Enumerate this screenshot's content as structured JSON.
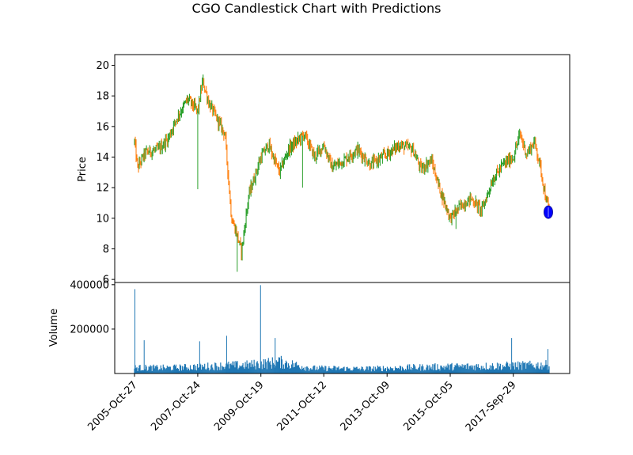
{
  "chart_data": [
    {
      "type": "candlestick",
      "title": "CGO Candlestick Chart with Predictions",
      "xlabel": "",
      "ylabel": "Price",
      "ylim": [
        5.8,
        20.7
      ],
      "y_ticks": [
        6,
        8,
        10,
        12,
        14,
        16,
        18,
        20
      ],
      "x_ticks": [
        "2005-Oct-27",
        "2007-Oct-24",
        "2009-Oct-19",
        "2011-Oct-12",
        "2013-Oct-09",
        "2015-Oct-05",
        "2017-Sep-29"
      ],
      "up_color": "#2ca02c",
      "down_color": "#ff7f0e",
      "prediction_color": "#0000ff",
      "trend": [
        {
          "date": "2005-Oct-27",
          "value": 15.0
        },
        {
          "date": "2005-Dec-01",
          "value": 13.3
        },
        {
          "date": "2006-Mar-01",
          "value": 14.3
        },
        {
          "date": "2006-Aug-01",
          "value": 14.5
        },
        {
          "date": "2006-Nov-15",
          "value": 15.2
        },
        {
          "date": "2007-Mar-01",
          "value": 16.6
        },
        {
          "date": "2007-Jul-01",
          "value": 17.8
        },
        {
          "date": "2007-Oct-24",
          "value": 17.0
        },
        {
          "date": "2007-Dec-20",
          "value": 19.0
        },
        {
          "date": "2008-Mar-01",
          "value": 17.5
        },
        {
          "date": "2008-Jun-01",
          "value": 16.5
        },
        {
          "date": "2008-Sep-01",
          "value": 15.5
        },
        {
          "date": "2008-Nov-15",
          "value": 10.0
        },
        {
          "date": "2009-Jan-15",
          "value": 9.0
        },
        {
          "date": "2009-Mar-10",
          "value": 7.8
        },
        {
          "date": "2009-Jun-01",
          "value": 11.5
        },
        {
          "date": "2009-Oct-19",
          "value": 14.0
        },
        {
          "date": "2010-Jan-15",
          "value": 14.8
        },
        {
          "date": "2010-May-20",
          "value": 13.0
        },
        {
          "date": "2010-Sep-01",
          "value": 14.5
        },
        {
          "date": "2011-Mar-01",
          "value": 15.5
        },
        {
          "date": "2011-Jul-01",
          "value": 14.0
        },
        {
          "date": "2011-Oct-12",
          "value": 14.8
        },
        {
          "date": "2012-Jan-15",
          "value": 13.3
        },
        {
          "date": "2012-Jun-01",
          "value": 13.8
        },
        {
          "date": "2012-Nov-01",
          "value": 14.5
        },
        {
          "date": "2013-Apr-01",
          "value": 13.5
        },
        {
          "date": "2013-Oct-09",
          "value": 14.2
        },
        {
          "date": "2014-Mar-01",
          "value": 14.8
        },
        {
          "date": "2014-Aug-01",
          "value": 14.5
        },
        {
          "date": "2014-Nov-01",
          "value": 13.2
        },
        {
          "date": "2015-Mar-01",
          "value": 13.8
        },
        {
          "date": "2015-Jun-01",
          "value": 12.0
        },
        {
          "date": "2015-Oct-05",
          "value": 10.0
        },
        {
          "date": "2016-Feb-01",
          "value": 10.8
        },
        {
          "date": "2016-Jun-01",
          "value": 11.3
        },
        {
          "date": "2016-Oct-01",
          "value": 10.5
        },
        {
          "date": "2017-Feb-01",
          "value": 12.5
        },
        {
          "date": "2017-Jun-01",
          "value": 13.5
        },
        {
          "date": "2017-Sep-29",
          "value": 14.0
        },
        {
          "date": "2017-Dec-15",
          "value": 15.5
        },
        {
          "date": "2018-Mar-01",
          "value": 14.2
        },
        {
          "date": "2018-Jun-01",
          "value": 15.0
        },
        {
          "date": "2018-Aug-01",
          "value": 13.5
        },
        {
          "date": "2018-Oct-01",
          "value": 11.5
        },
        {
          "date": "2018-Nov-15",
          "value": 10.5
        }
      ],
      "spikes": [
        {
          "date": "2007-Oct-24",
          "low": 11.9
        },
        {
          "date": "2009-Jan-20",
          "low": 6.5
        },
        {
          "date": "2011-Feb-10",
          "low": 12.0
        },
        {
          "date": "2015-Dec-10",
          "low": 9.3
        }
      ],
      "prediction": {
        "date": "2018-Nov-15",
        "value": 10.4
      }
    },
    {
      "type": "bar",
      "ylabel": "Volume",
      "ylim": [
        0,
        410000
      ],
      "y_ticks": [
        200000,
        400000
      ],
      "color": "#1f77b4",
      "volume_profile": [
        {
          "date": "2005-Oct-27",
          "value": 30000
        },
        {
          "date": "2007-Jan-01",
          "value": 30000
        },
        {
          "date": "2008-Jul-01",
          "value": 40000
        },
        {
          "date": "2009-Jun-01",
          "value": 45000
        },
        {
          "date": "2010-Jun-01",
          "value": 60000
        },
        {
          "date": "2011-Jun-01",
          "value": 28000
        },
        {
          "date": "2013-Jan-01",
          "value": 25000
        },
        {
          "date": "2015-Jun-01",
          "value": 35000
        },
        {
          "date": "2017-Jun-01",
          "value": 40000
        },
        {
          "date": "2018-Nov-15",
          "value": 45000
        }
      ],
      "spikes": [
        {
          "date": "2005-Oct-31",
          "value": 380000
        },
        {
          "date": "2006-Feb-15",
          "value": 150000
        },
        {
          "date": "2007-Nov-15",
          "value": 145000
        },
        {
          "date": "2008-Sep-20",
          "value": 170000
        },
        {
          "date": "2009-Oct-15",
          "value": 398000
        },
        {
          "date": "2010-Apr-01",
          "value": 160000
        },
        {
          "date": "2017-Sep-10",
          "value": 160000
        },
        {
          "date": "2018-Nov-01",
          "value": 110000
        }
      ]
    }
  ]
}
